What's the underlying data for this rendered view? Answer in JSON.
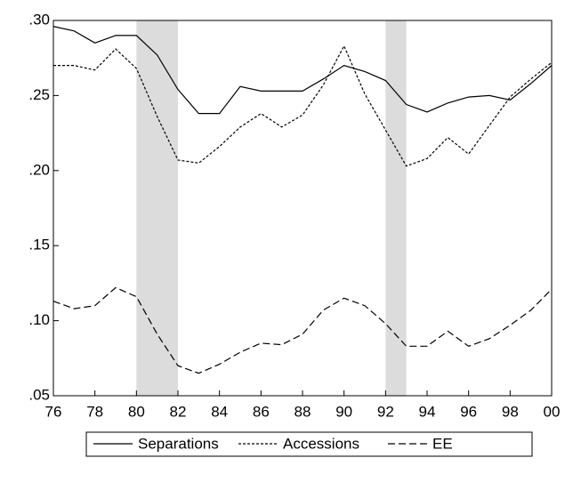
{
  "chart_data": {
    "type": "line",
    "x": [
      1976,
      1977,
      1978,
      1979,
      1980,
      1981,
      1982,
      1983,
      1984,
      1985,
      1986,
      1987,
      1988,
      1989,
      1990,
      1991,
      1992,
      1993,
      1994,
      1995,
      1996,
      1997,
      1998,
      1999,
      2000
    ],
    "series": [
      {
        "name": "Separations",
        "color": "#000000",
        "style": "solid",
        "values": [
          0.296,
          0.293,
          0.285,
          0.29,
          0.29,
          0.277,
          0.254,
          0.238,
          0.238,
          0.256,
          0.253,
          0.253,
          0.253,
          0.261,
          0.27,
          0.266,
          0.26,
          0.244,
          0.239,
          0.245,
          0.249,
          0.25,
          0.247,
          0.258,
          0.27
        ]
      },
      {
        "name": "Accessions",
        "color": "#000000",
        "style": "dotted",
        "values": [
          0.27,
          0.27,
          0.267,
          0.281,
          0.268,
          0.236,
          0.207,
          0.205,
          0.216,
          0.229,
          0.238,
          0.229,
          0.237,
          0.257,
          0.283,
          0.251,
          0.227,
          0.203,
          0.208,
          0.222,
          0.211,
          0.23,
          0.249,
          0.261,
          0.272
        ]
      },
      {
        "name": "EE",
        "color": "#000000",
        "style": "dashed",
        "values": [
          0.113,
          0.108,
          0.11,
          0.122,
          0.116,
          0.091,
          0.07,
          0.065,
          0.071,
          0.079,
          0.085,
          0.084,
          0.091,
          0.107,
          0.115,
          0.11,
          0.098,
          0.083,
          0.083,
          0.093,
          0.083,
          0.088,
          0.097,
          0.107,
          0.121
        ]
      }
    ],
    "shading": [
      [
        1980,
        1982
      ],
      [
        1992,
        1993
      ]
    ],
    "shading_color": "#dcdcdc",
    "xlim": [
      1976,
      2000
    ],
    "xticks": [
      {
        "value": 1976,
        "label": "76"
      },
      {
        "value": 1978,
        "label": "78"
      },
      {
        "value": 1980,
        "label": "80"
      },
      {
        "value": 1982,
        "label": "82"
      },
      {
        "value": 1984,
        "label": "84"
      },
      {
        "value": 1986,
        "label": "86"
      },
      {
        "value": 1988,
        "label": "88"
      },
      {
        "value": 1990,
        "label": "90"
      },
      {
        "value": 1992,
        "label": "92"
      },
      {
        "value": 1994,
        "label": "94"
      },
      {
        "value": 1996,
        "label": "96"
      },
      {
        "value": 1998,
        "label": "98"
      },
      {
        "value": 2000,
        "label": "00"
      }
    ],
    "ylim": [
      0.05,
      0.3
    ],
    "yticks": [
      {
        "value": 0.05,
        "label": ".05"
      },
      {
        "value": 0.1,
        "label": ".10"
      },
      {
        "value": 0.15,
        "label": ".15"
      },
      {
        "value": 0.2,
        "label": ".20"
      },
      {
        "value": 0.25,
        "label": ".25"
      },
      {
        "value": 0.3,
        "label": ".30"
      }
    ],
    "grid": false,
    "legend": "bottom"
  }
}
